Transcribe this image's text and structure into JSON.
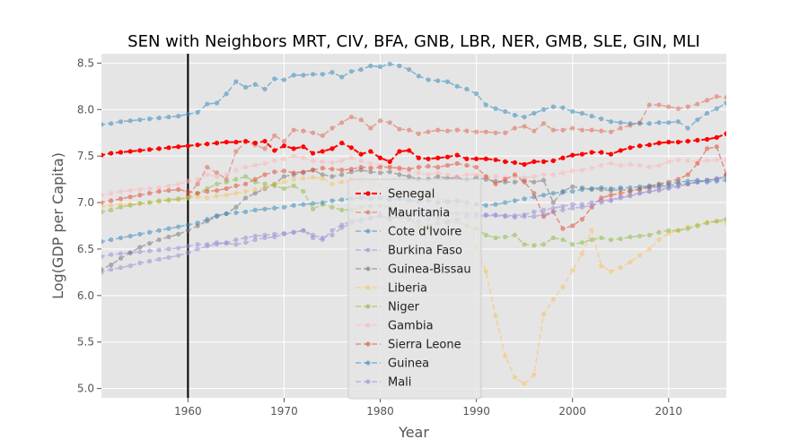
{
  "chart_data": {
    "type": "line",
    "title": "SEN with Neighbors MRT, CIV, BFA, GNB, LBR, NER, GMB, SLE, GIN, MLI",
    "xlabel": "Year",
    "ylabel": "Log(GDP per Capita)",
    "xlim": [
      1951,
      2016
    ],
    "ylim": [
      4.9,
      8.6
    ],
    "xticks": [
      1960,
      1970,
      1980,
      1990,
      2000,
      2010
    ],
    "yticks": [
      5.0,
      5.5,
      6.0,
      6.5,
      7.0,
      7.5,
      8.0,
      8.5
    ],
    "ytick_labels": [
      "5.0",
      "5.5",
      "6.0",
      "6.5",
      "7.0",
      "7.5",
      "8.0",
      "8.5"
    ],
    "grid": true,
    "legend_position": "lower center",
    "vline_x": 1960,
    "series": [
      {
        "name": "Senegal",
        "color": "#ff0000",
        "alpha": 1.0,
        "start": 1950,
        "values": [
          7.49,
          7.51,
          7.53,
          7.54,
          7.55,
          7.56,
          7.57,
          7.58,
          7.59,
          7.6,
          7.61,
          7.62,
          7.63,
          7.64,
          7.65,
          7.65,
          7.66,
          7.64,
          7.66,
          7.56,
          7.61,
          7.58,
          7.6,
          7.53,
          7.55,
          7.58,
          7.64,
          7.59,
          7.52,
          7.55,
          7.48,
          7.44,
          7.55,
          7.56,
          7.48,
          7.47,
          7.48,
          7.49,
          7.51,
          7.47,
          7.47,
          7.47,
          7.46,
          7.44,
          7.43,
          7.41,
          7.44,
          7.44,
          7.45,
          7.48,
          7.51,
          7.52,
          7.54,
          7.54,
          7.52,
          7.56,
          7.59,
          7.61,
          7.62,
          7.64,
          7.65,
          7.65,
          7.66,
          7.67,
          7.68,
          7.7,
          7.74,
          7.77
        ]
      },
      {
        "name": "Mauritania",
        "color": "#e24a33",
        "alpha": 0.45,
        "start": 1960,
        "values": [
          7.08,
          7.2,
          7.38,
          7.32,
          7.25,
          7.55,
          7.65,
          7.62,
          7.58,
          7.72,
          7.66,
          7.78,
          7.77,
          7.75,
          7.72,
          7.8,
          7.86,
          7.92,
          7.89,
          7.8,
          7.88,
          7.86,
          7.79,
          7.78,
          7.74,
          7.76,
          7.78,
          7.77,
          7.78,
          7.77,
          7.76,
          7.76,
          7.75,
          7.75,
          7.8,
          7.82,
          7.77,
          7.85,
          7.78,
          7.78,
          7.8,
          7.78,
          7.78,
          7.77,
          7.76,
          7.8,
          7.83,
          7.86,
          8.05,
          8.05,
          8.03,
          8.01,
          8.03,
          8.06,
          8.1,
          8.14,
          8.13
        ]
      },
      {
        "name": "Cote d'Ivoire",
        "color": "#348abd",
        "alpha": 0.55,
        "start": 1950,
        "values": [
          7.83,
          7.84,
          7.85,
          7.87,
          7.88,
          7.89,
          7.9,
          7.91,
          7.92,
          7.93,
          7.95,
          7.97,
          8.06,
          8.07,
          8.17,
          8.3,
          8.24,
          8.27,
          8.22,
          8.33,
          8.32,
          8.37,
          8.37,
          8.38,
          8.38,
          8.4,
          8.35,
          8.41,
          8.43,
          8.47,
          8.46,
          8.49,
          8.47,
          8.43,
          8.36,
          8.32,
          8.31,
          8.3,
          8.25,
          8.22,
          8.17,
          8.05,
          8.01,
          7.98,
          7.94,
          7.92,
          7.96,
          8.0,
          8.03,
          8.02,
          7.98,
          7.96,
          7.93,
          7.9,
          7.87,
          7.86,
          7.85,
          7.85,
          7.85,
          7.86,
          7.86,
          7.87,
          7.8,
          7.89,
          7.96,
          8.01,
          8.07,
          8.13
        ]
      },
      {
        "name": "Burkina Faso",
        "color": "#988ed5",
        "alpha": 0.55,
        "start": 1950,
        "values": [
          6.4,
          6.42,
          6.44,
          6.45,
          6.46,
          6.47,
          6.48,
          6.49,
          6.5,
          6.51,
          6.53,
          6.55,
          6.55,
          6.57,
          6.56,
          6.55,
          6.57,
          6.6,
          6.62,
          6.63,
          6.66,
          6.68,
          6.7,
          6.65,
          6.62,
          6.65,
          6.73,
          6.78,
          6.8,
          6.83,
          6.86,
          6.82,
          6.89,
          6.88,
          6.89,
          6.9,
          6.91,
          6.89,
          6.88,
          6.88,
          6.88,
          6.87,
          6.87,
          6.86,
          6.86,
          6.87,
          6.9,
          6.92,
          6.94,
          6.96,
          6.98,
          6.98,
          7.0,
          7.02,
          7.03,
          7.06,
          7.08,
          7.1,
          7.12,
          7.13,
          7.15,
          7.17,
          7.2,
          7.22,
          7.24,
          7.26,
          7.28,
          7.3
        ]
      },
      {
        "name": "Guinea-Bissau",
        "color": "#777777",
        "alpha": 0.55,
        "start": 1950,
        "values": [
          6.22,
          6.28,
          6.33,
          6.4,
          6.46,
          6.52,
          6.56,
          6.6,
          6.63,
          6.66,
          6.7,
          6.75,
          6.8,
          6.85,
          6.88,
          6.95,
          7.05,
          7.1,
          7.15,
          7.2,
          7.28,
          7.3,
          7.32,
          7.35,
          7.3,
          7.28,
          7.3,
          7.33,
          7.35,
          7.33,
          7.32,
          7.33,
          7.3,
          7.28,
          7.25,
          7.25,
          7.28,
          7.26,
          7.27,
          7.24,
          7.27,
          7.25,
          7.23,
          7.22,
          7.22,
          7.24,
          7.22,
          7.24,
          7.0,
          7.12,
          7.17,
          7.16,
          7.14,
          7.14,
          7.13,
          7.14,
          7.13,
          7.14,
          7.16,
          7.17,
          7.18,
          7.2,
          7.2,
          7.22,
          7.24,
          7.25,
          7.3,
          7.36
        ]
      },
      {
        "name": "Liberia",
        "color": "#fbc15e",
        "alpha": 0.55,
        "start": 1950,
        "values": [
          6.95,
          6.96,
          6.97,
          6.98,
          6.98,
          6.99,
          7.0,
          7.01,
          7.02,
          7.03,
          7.05,
          7.06,
          7.05,
          7.07,
          7.08,
          7.1,
          7.12,
          7.14,
          7.16,
          7.2,
          7.22,
          7.25,
          7.26,
          7.27,
          7.26,
          7.2,
          7.22,
          7.24,
          7.23,
          7.22,
          7.18,
          7.15,
          7.1,
          7.08,
          7.07,
          7.06,
          7.04,
          7.02,
          6.98,
          6.95,
          6.52,
          6.26,
          5.78,
          5.35,
          5.12,
          5.05,
          5.15,
          5.8,
          5.96,
          6.09,
          6.27,
          6.45,
          6.7,
          6.32,
          6.26,
          6.3,
          6.36,
          6.43,
          6.5,
          6.6,
          6.67,
          6.7,
          6.74,
          6.76,
          6.79,
          6.8,
          6.78,
          6.72
        ]
      },
      {
        "name": "Niger",
        "color": "#8eba42",
        "alpha": 0.55,
        "start": 1950,
        "values": [
          6.88,
          6.9,
          6.92,
          6.95,
          6.97,
          6.99,
          7.0,
          7.02,
          7.03,
          7.04,
          7.05,
          7.1,
          7.15,
          7.2,
          7.22,
          7.25,
          7.28,
          7.22,
          7.2,
          7.18,
          7.15,
          7.18,
          7.12,
          6.93,
          6.98,
          6.95,
          6.92,
          6.92,
          6.95,
          6.96,
          6.97,
          6.95,
          6.88,
          6.82,
          6.75,
          6.75,
          6.78,
          6.78,
          6.8,
          6.75,
          6.72,
          6.65,
          6.62,
          6.63,
          6.65,
          6.55,
          6.54,
          6.55,
          6.62,
          6.6,
          6.55,
          6.57,
          6.6,
          6.62,
          6.6,
          6.61,
          6.63,
          6.64,
          6.65,
          6.68,
          6.7,
          6.7,
          6.72,
          6.75,
          6.78,
          6.8,
          6.82,
          6.84
        ]
      },
      {
        "name": "Gambia",
        "color": "#ffb5b8",
        "alpha": 0.55,
        "start": 1950,
        "values": [
          7.05,
          7.08,
          7.1,
          7.12,
          7.13,
          7.14,
          7.15,
          7.16,
          7.18,
          7.2,
          7.23,
          7.25,
          7.3,
          7.28,
          7.3,
          7.35,
          7.38,
          7.4,
          7.42,
          7.45,
          7.47,
          7.5,
          7.48,
          7.45,
          7.44,
          7.43,
          7.45,
          7.48,
          7.45,
          7.42,
          7.4,
          7.38,
          7.35,
          7.33,
          7.32,
          7.3,
          7.32,
          7.3,
          7.28,
          7.3,
          7.3,
          7.28,
          7.28,
          7.27,
          7.28,
          7.27,
          7.28,
          7.3,
          7.3,
          7.32,
          7.34,
          7.35,
          7.37,
          7.4,
          7.42,
          7.4,
          7.41,
          7.4,
          7.38,
          7.4,
          7.44,
          7.46,
          7.45,
          7.44,
          7.45,
          7.46,
          7.46,
          7.47
        ]
      },
      {
        "name": "Sierra Leone",
        "color": "#e24a33",
        "alpha": 0.55,
        "start": 1950,
        "values": [
          6.98,
          7.0,
          7.02,
          7.04,
          7.06,
          7.08,
          7.1,
          7.12,
          7.13,
          7.14,
          7.12,
          7.1,
          7.12,
          7.13,
          7.15,
          7.18,
          7.2,
          7.25,
          7.3,
          7.33,
          7.34,
          7.32,
          7.33,
          7.35,
          7.37,
          7.36,
          7.35,
          7.36,
          7.38,
          7.37,
          7.38,
          7.38,
          7.37,
          7.36,
          7.38,
          7.39,
          7.38,
          7.4,
          7.42,
          7.4,
          7.38,
          7.28,
          7.2,
          7.25,
          7.3,
          7.22,
          7.1,
          6.85,
          6.9,
          6.72,
          6.75,
          6.82,
          6.95,
          7.05,
          7.08,
          7.1,
          7.12,
          7.15,
          7.17,
          7.2,
          7.22,
          7.25,
          7.3,
          7.42,
          7.58,
          7.6,
          7.3,
          7.28
        ]
      },
      {
        "name": "Guinea",
        "color": "#348abd",
        "alpha": 0.55,
        "start": 1950,
        "values": [
          6.57,
          6.58,
          6.6,
          6.62,
          6.64,
          6.66,
          6.68,
          6.7,
          6.72,
          6.74,
          6.76,
          6.78,
          6.82,
          6.86,
          6.88,
          6.89,
          6.9,
          6.92,
          6.93,
          6.94,
          6.95,
          6.97,
          6.98,
          6.99,
          7.0,
          7.02,
          7.03,
          7.04,
          7.05,
          7.04,
          7.05,
          7.03,
          7.04,
          7.02,
          7.01,
          7.02,
          7.0,
          7.01,
          7.02,
          7.0,
          6.98,
          6.97,
          6.98,
          7.0,
          7.02,
          7.04,
          7.06,
          7.08,
          7.1,
          7.11,
          7.12,
          7.14,
          7.15,
          7.16,
          7.15,
          7.16,
          7.16,
          7.17,
          7.18,
          7.19,
          7.2,
          7.22,
          7.23,
          7.24,
          7.22,
          7.23,
          7.24,
          7.26
        ]
      },
      {
        "name": "Mali",
        "color": "#988ed5",
        "alpha": 0.55,
        "start": 1950,
        "values": [
          6.22,
          6.25,
          6.28,
          6.3,
          6.32,
          6.35,
          6.37,
          6.39,
          6.41,
          6.43,
          6.46,
          6.5,
          6.53,
          6.55,
          6.57,
          6.6,
          6.62,
          6.64,
          6.65,
          6.66,
          6.67,
          6.68,
          6.7,
          6.62,
          6.6,
          6.7,
          6.76,
          6.8,
          6.82,
          6.84,
          6.85,
          6.83,
          6.84,
          6.82,
          6.8,
          6.82,
          6.83,
          6.8,
          6.82,
          6.85,
          6.85,
          6.86,
          6.86,
          6.85,
          6.84,
          6.85,
          6.85,
          6.87,
          6.9,
          6.92,
          6.94,
          6.95,
          6.97,
          7.0,
          7.02,
          7.05,
          7.07,
          7.1,
          7.12,
          7.14,
          7.16,
          7.18,
          7.2,
          7.22,
          7.24,
          7.25,
          7.27,
          7.28
        ]
      }
    ]
  }
}
